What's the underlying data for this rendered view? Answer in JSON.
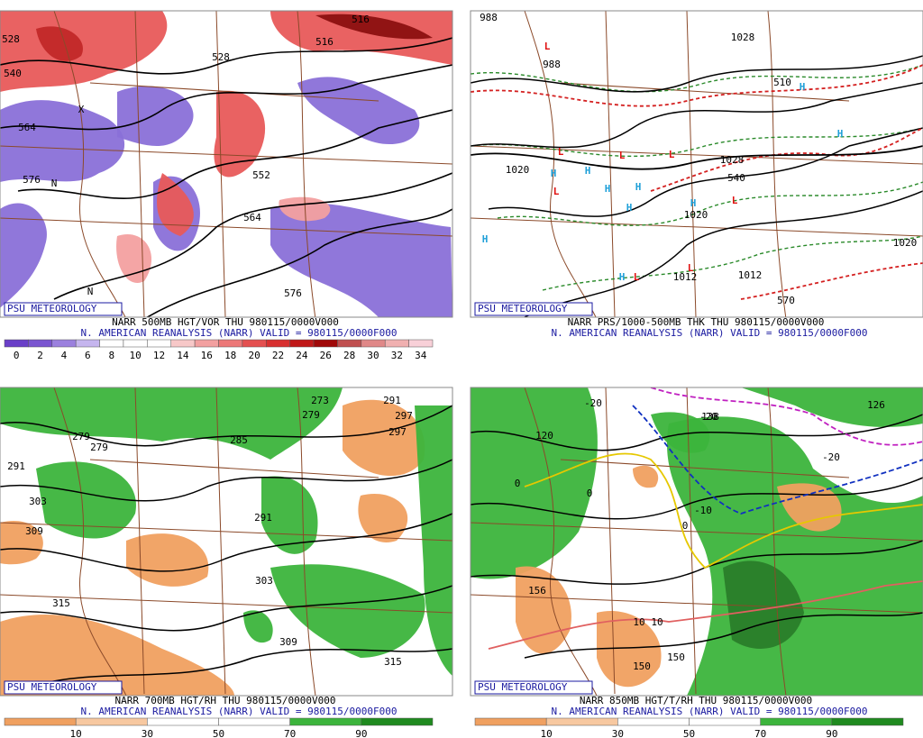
{
  "panels": [
    {
      "branding": "PSU METEOROLOGY",
      "title": "NARR 500MB HGT/VOR THU 980115/0000V000",
      "subtitle": "N. AMERICAN REANALYSIS (NARR) VALID = 980115/0000F000",
      "colorbar_labels": [
        0,
        2,
        4,
        6,
        8,
        10,
        12,
        14,
        16,
        18,
        20,
        22,
        24,
        26,
        28,
        30,
        32,
        34
      ],
      "map_labels": [
        "528",
        "540",
        "516",
        "516",
        "528",
        "564",
        "552",
        "564",
        "576",
        "576",
        "N",
        "N",
        "X"
      ]
    },
    {
      "branding": "PSU METEOROLOGY",
      "title": "NARR PRS/1000-500MB THK THU 980115/0000V000",
      "subtitle": "N. AMERICAN REANALYSIS (NARR) VALID = 980115/0000F000",
      "map_labels": [
        "988",
        "988",
        "1020",
        "1020",
        "1028",
        "1028",
        "1020",
        "1012",
        "1012",
        "510",
        "540",
        "570",
        "L",
        "L",
        "L",
        "L",
        "L",
        "L",
        "L",
        "L",
        "H",
        "H",
        "H",
        "H",
        "H",
        "H",
        "H",
        "H",
        "H",
        "H"
      ]
    },
    {
      "branding": "PSU METEOROLOGY",
      "title": "NARR 700MB HGT/RH THU 980115/0000V000",
      "subtitle": "N. AMERICAN REANALYSIS (NARR) VALID = 980115/0000F000",
      "colorbar_labels": [
        10,
        30,
        50,
        70,
        90
      ],
      "map_labels": [
        "273",
        "279",
        "279",
        "285",
        "291",
        "297",
        "279",
        "291",
        "303",
        "309",
        "315",
        "297",
        "303",
        "309",
        "315",
        "291"
      ]
    },
    {
      "branding": "PSU METEOROLOGY",
      "title": "NARR 850MB HGT/T/RH THU 980115/0000V000",
      "subtitle": "N. AMERICAN REANALYSIS (NARR) VALID = 980115/0000F000",
      "colorbar_labels": [
        10,
        30,
        50,
        70,
        90
      ],
      "map_labels": [
        "-20",
        "-20",
        "-20",
        "-10",
        "0",
        "0",
        "0",
        "10",
        "10",
        "120",
        "126",
        "138",
        "150",
        "150",
        "156"
      ]
    }
  ]
}
